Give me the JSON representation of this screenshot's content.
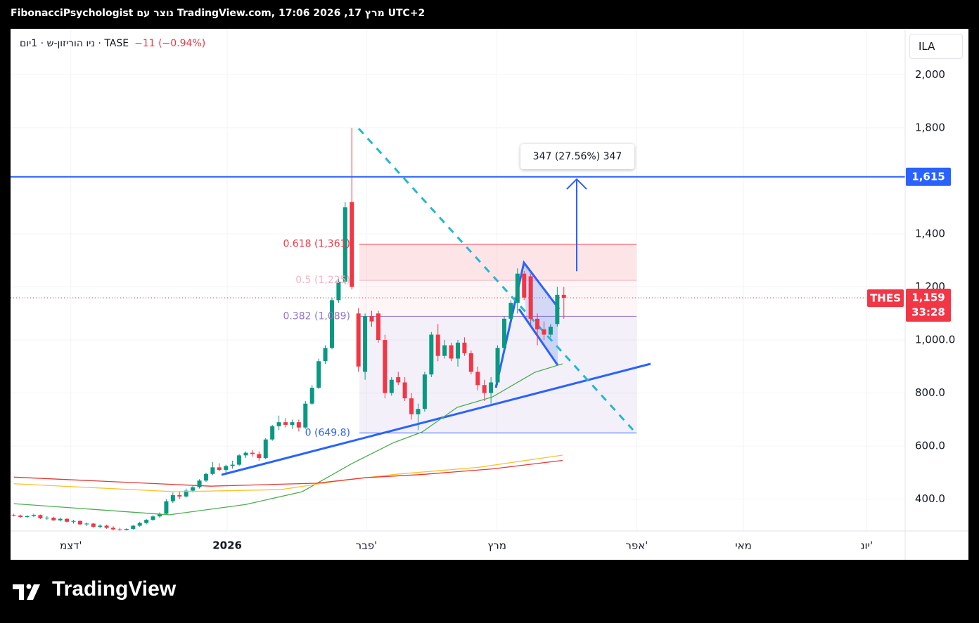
{
  "header": "FibonacciPsychologist נוצר עם TradingView.com, 17:06 2026 ,17 מרץ UTC+2",
  "legend": {
    "symbol": "ניו הוריזון-ש · 1יום · TASE",
    "change": "−11 (−0.94%)"
  },
  "currency": "ILA",
  "logo": "TradingView",
  "chart_data": {
    "type": "candlestick",
    "up_color": "#089981",
    "down_color": "#f23645",
    "open": [
      340,
      338,
      333,
      336,
      340,
      328,
      330,
      320,
      326,
      315,
      318,
      305,
      308,
      296,
      300,
      292,
      286,
      284,
      288,
      300,
      310,
      322,
      335,
      345,
      392,
      415,
      410,
      432,
      445,
      470,
      495,
      520,
      510,
      525,
      530,
      565,
      575,
      570,
      555,
      625,
      675,
      690,
      680,
      690,
      670,
      760,
      820,
      920,
      970,
      1150,
      1220,
      1520,
      1100,
      880,
      1090,
      1100,
      1000,
      800,
      860,
      840,
      780,
      720,
      740,
      870,
      1020,
      940,
      980,
      930,
      990,
      950,
      880,
      830,
      800,
      840,
      970,
      1080,
      1140,
      1250,
      1240,
      1080,
      1040,
      1020,
      1060,
      1170
    ],
    "high": [
      345,
      342,
      340,
      345,
      342,
      336,
      334,
      330,
      328,
      322,
      320,
      312,
      310,
      305,
      304,
      298,
      292,
      290,
      302,
      315,
      325,
      340,
      350,
      400,
      425,
      430,
      440,
      450,
      475,
      500,
      540,
      535,
      530,
      545,
      570,
      580,
      585,
      580,
      630,
      680,
      715,
      705,
      700,
      700,
      770,
      830,
      930,
      980,
      1160,
      1230,
      1520,
      1800,
      1120,
      1100,
      1110,
      1110,
      1020,
      860,
      880,
      860,
      800,
      760,
      880,
      1030,
      1060,
      1000,
      990,
      1000,
      1010,
      960,
      900,
      850,
      860,
      980,
      1090,
      1150,
      1270,
      1260,
      1250,
      1100,
      1070,
      1060,
      1200,
      1200
    ],
    "low": [
      335,
      330,
      328,
      332,
      325,
      322,
      318,
      316,
      312,
      308,
      302,
      298,
      292,
      290,
      288,
      282,
      280,
      282,
      285,
      296,
      305,
      318,
      330,
      342,
      385,
      400,
      405,
      425,
      440,
      465,
      490,
      505,
      500,
      515,
      525,
      555,
      560,
      545,
      550,
      620,
      660,
      670,
      665,
      655,
      665,
      755,
      815,
      910,
      965,
      1140,
      1210,
      1190,
      880,
      850,
      1050,
      990,
      780,
      790,
      830,
      770,
      700,
      660,
      730,
      860,
      920,
      930,
      920,
      900,
      940,
      870,
      810,
      770,
      760,
      830,
      960,
      1070,
      1100,
      1150,
      1060,
      980,
      1000,
      1010,
      1050,
      1080
    ],
    "close": [
      338,
      333,
      336,
      340,
      328,
      330,
      320,
      326,
      315,
      318,
      305,
      308,
      296,
      300,
      292,
      286,
      284,
      288,
      300,
      310,
      322,
      335,
      345,
      392,
      415,
      410,
      432,
      445,
      470,
      495,
      520,
      510,
      525,
      530,
      565,
      575,
      570,
      555,
      625,
      675,
      690,
      680,
      690,
      670,
      760,
      820,
      920,
      970,
      1150,
      1220,
      1500,
      1200,
      900,
      1090,
      1070,
      1000,
      800,
      850,
      840,
      780,
      720,
      740,
      870,
      1020,
      940,
      980,
      930,
      990,
      950,
      880,
      830,
      800,
      840,
      970,
      1080,
      1140,
      1250,
      1160,
      1080,
      1040,
      1020,
      1050,
      1170,
      1159
    ],
    "lines": [
      {
        "color": "#4caf50",
        "x": [
          0,
          23.4,
          35,
          43.5,
          51,
          57.3,
          61.6,
          66.9,
          72.2,
          78.6,
          82.8
        ],
        "values": [
          383,
          341,
          380,
          428,
          534,
          613,
          653,
          746,
          785,
          878,
          910
        ]
      },
      {
        "color": "#fbc02d",
        "x": [
          0,
          24.4,
          40.3,
          48.8,
          57.3,
          70.1,
          82.8
        ],
        "values": [
          458,
          428,
          436,
          468,
          493,
          520,
          566
        ]
      },
      {
        "color": "#e53935",
        "x": [
          0,
          29.7,
          45.6,
          53.1,
          61.6,
          72.2,
          82.8
        ],
        "values": [
          483,
          449,
          460,
          481,
          493,
          514,
          546
        ]
      }
    ],
    "xlim": [
      -0.5,
      134.5
    ],
    "xticks": [
      {
        "value": 8.6,
        "label": "דצמ'"
      },
      {
        "value": 32.2,
        "label": "2026",
        "bold": true
      },
      {
        "value": 53.2,
        "label": "פבר'"
      },
      {
        "value": 72.9,
        "label": "מרץ"
      },
      {
        "value": 94.0,
        "label": "אפר'"
      },
      {
        "value": 110.1,
        "label": "מאי"
      },
      {
        "value": 128.7,
        "label": "יונ'"
      }
    ],
    "ylim": [
      280,
      2173
    ],
    "yticks": [
      {
        "value": 400,
        "label": "400.0"
      },
      {
        "value": 600,
        "label": "600.0"
      },
      {
        "value": 800,
        "label": "800.0"
      },
      {
        "value": 1000,
        "label": "1,000.0"
      },
      {
        "value": 1200,
        "label": "1,200"
      },
      {
        "value": 1400,
        "label": "1,400"
      },
      {
        "value": 1800,
        "label": "1,800"
      },
      {
        "value": 2000,
        "label": "2,000"
      }
    ],
    "grid": true,
    "price_lines": [
      {
        "value": 1615,
        "label": "1,615",
        "color": "#2962ff"
      }
    ],
    "fib_levels": [
      {
        "value": 1361,
        "label": "0.618 (1,361)",
        "color": "#f23645",
        "fill": "rgba(242,54,69,0.13)"
      },
      {
        "value": 1225,
        "label": "0.5 (1,225)",
        "color": "#f5b5c2",
        "fill": "rgba(242,54,69,0.05)"
      },
      {
        "value": 1089,
        "label": "0.382 (1,089)",
        "color": "#9575cd",
        "fill": "rgba(103,58,183,0.08)"
      },
      {
        "value": 649.8,
        "label": "0 (649.8)",
        "color": "#2962ff"
      }
    ],
    "last_price": {
      "symbol": "THES",
      "value": 1159,
      "label": "1,159",
      "countdown": "33:28",
      "color": "#f23645"
    },
    "measure": {
      "start": 1259,
      "end": 1606,
      "label": "347 (27.56%) 347",
      "color": "#2962ff"
    }
  }
}
